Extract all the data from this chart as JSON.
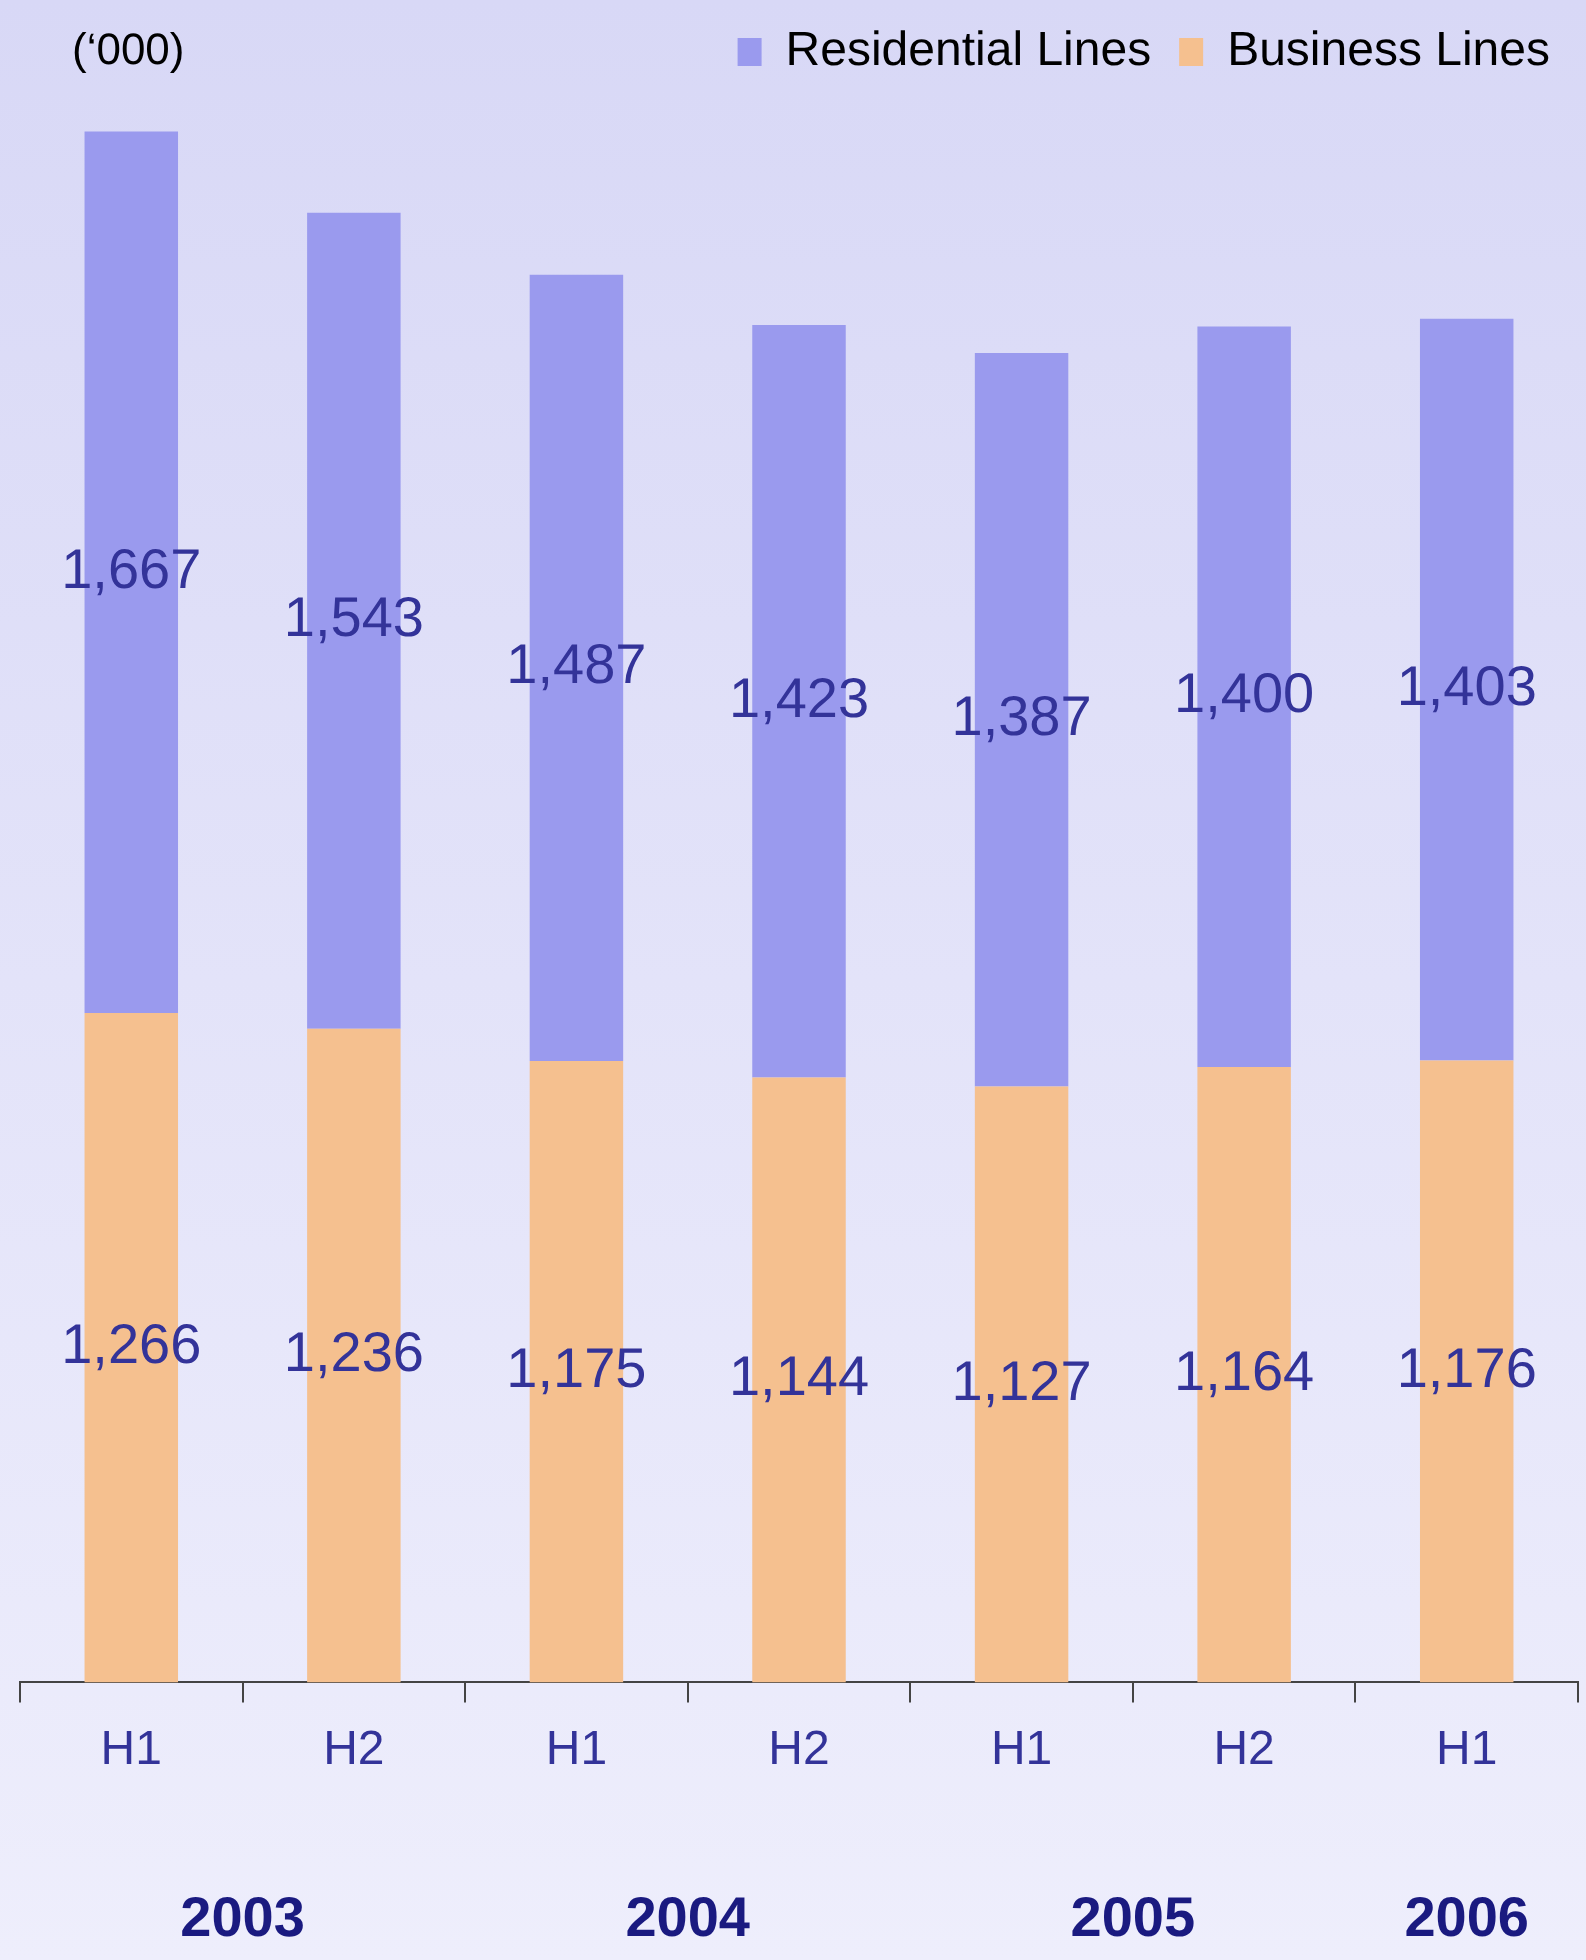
{
  "chart_data": {
    "type": "bar",
    "stacked": true,
    "ylabel": "(‘000)",
    "categories": [
      "H1",
      "H2",
      "H1",
      "H2",
      "H1",
      "H2",
      "H1"
    ],
    "series": [
      {
        "name": "Business Lines",
        "color": "#f5c08f",
        "values": [
          1266,
          1236,
          1175,
          1144,
          1127,
          1164,
          1176
        ],
        "value_labels": [
          "1,266",
          "1,236",
          "1,175",
          "1,144",
          "1,127",
          "1,164",
          "1,176"
        ]
      },
      {
        "name": "Residential Lines",
        "color": "#9a9aee",
        "values": [
          1667,
          1543,
          1487,
          1423,
          1387,
          1400,
          1403
        ],
        "value_labels": [
          "1,667",
          "1,543",
          "1,487",
          "1,423",
          "1,387",
          "1,400",
          "1,403"
        ]
      }
    ],
    "legend": "top right",
    "grid": false,
    "annotations": [
      "2003",
      "2004",
      "2005",
      "2006"
    ]
  }
}
